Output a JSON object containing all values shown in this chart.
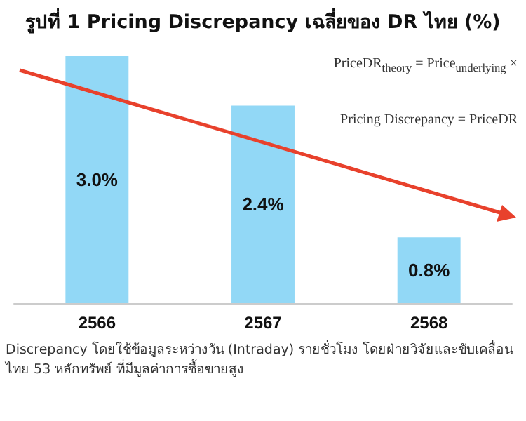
{
  "chart_data": {
    "type": "bar",
    "title": "รูปที่ 1 Pricing Discrepancy เฉลี่ยของ DR ไทย (%)",
    "categories": [
      "2566",
      "2567",
      "2568"
    ],
    "values": [
      3.0,
      2.4,
      0.8
    ],
    "color": "#92d8f6",
    "value_labels": [
      "3.0%",
      "2.4%",
      "0.8%"
    ],
    "annotations": [
      "PriceDR$_{theory}$ = Price$_{underlying}$ ×",
      "Pricing Discrepancy = PriceDR",
      "Discrepancy โดยใช้ข้อมูลระหว่างวัน (Intraday) รายชั่วโมง โดยฝ่ายวิจัยและขับเคลื่อน",
      "ไทย 53 หลักทรัพย์ ที่มีมูลค่าการซื้อขายสูง"
    ],
    "data_labels": false
  }
}
